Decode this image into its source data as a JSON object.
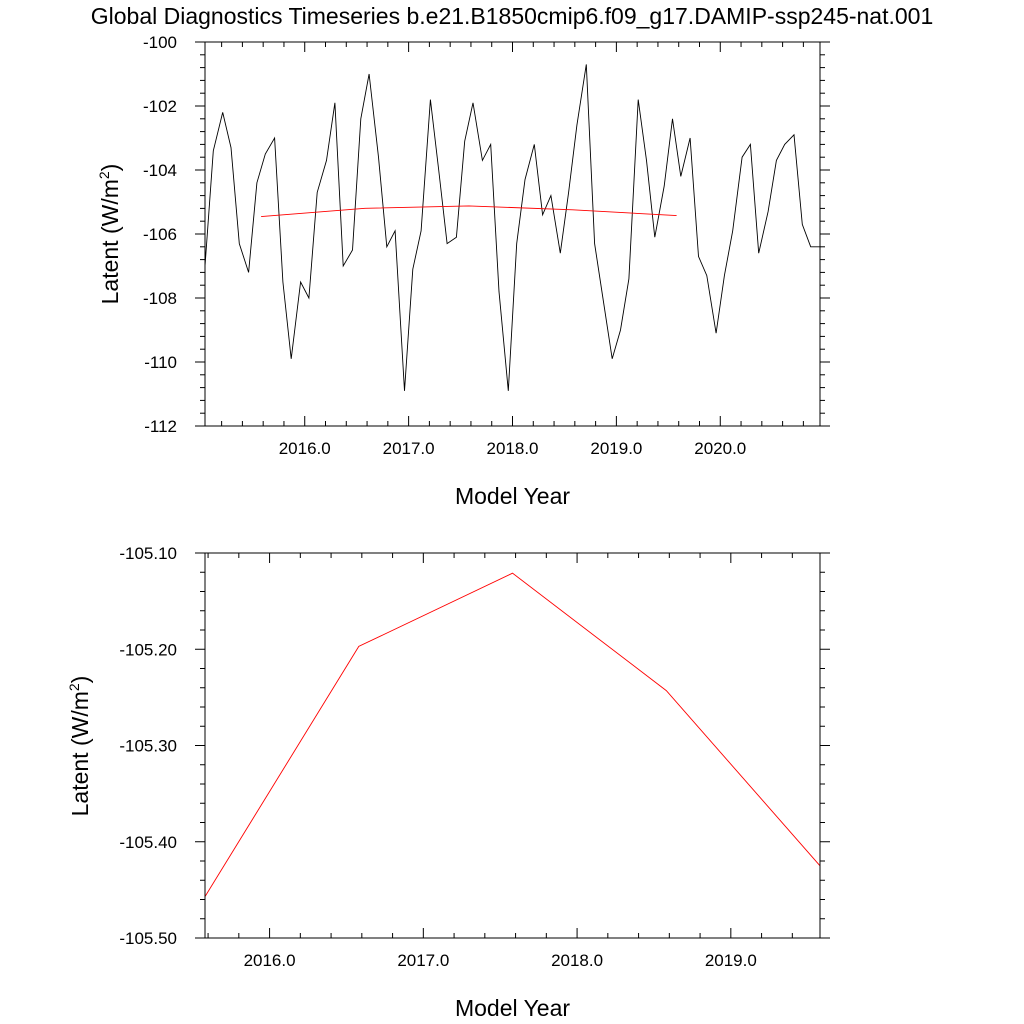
{
  "title": "Global Diagnostics Timeseries b.e21.B1850cmip6.f09_g17.DAMIP-ssp245-nat.001",
  "chart_data": [
    {
      "type": "line",
      "xlabel": "Model Year",
      "ylabel_main": "Latent (W/m",
      "ylabel_sup": "2",
      "ylabel_close": ")",
      "xlim": [
        2015.04,
        2020.96
      ],
      "ylim": [
        -112,
        -100
      ],
      "x_ticks": [
        2016.0,
        2017.0,
        2018.0,
        2019.0,
        2020.0
      ],
      "x_tick_labels": [
        "2016.0",
        "2017.0",
        "2018.0",
        "2019.0",
        "2020.0"
      ],
      "y_ticks": [
        -112,
        -110,
        -108,
        -106,
        -104,
        -102,
        -100
      ],
      "y_tick_labels": [
        "-112",
        "-110",
        "-108",
        "-106",
        "-104",
        "-102",
        "-100"
      ],
      "series": [
        {
          "color": "#000000",
          "x": [
            2015.04,
            2015.12,
            2015.21,
            2015.29,
            2015.37,
            2015.46,
            2015.54,
            2015.62,
            2015.71,
            2015.79,
            2015.87,
            2015.96,
            2016.04,
            2016.12,
            2016.21,
            2016.29,
            2016.37,
            2016.46,
            2016.54,
            2016.62,
            2016.71,
            2016.79,
            2016.87,
            2016.96,
            2017.04,
            2017.12,
            2017.21,
            2017.29,
            2017.37,
            2017.46,
            2017.54,
            2017.62,
            2017.71,
            2017.79,
            2017.87,
            2017.96,
            2018.04,
            2018.12,
            2018.21,
            2018.29,
            2018.37,
            2018.46,
            2018.54,
            2018.62,
            2018.71,
            2018.79,
            2018.87,
            2018.96,
            2019.04,
            2019.12,
            2019.21,
            2019.29,
            2019.37,
            2019.46,
            2019.54,
            2019.62,
            2019.71,
            2019.79,
            2019.87,
            2019.96,
            2020.04,
            2020.12,
            2020.21,
            2020.29,
            2020.37,
            2020.46,
            2020.54,
            2020.62,
            2020.71,
            2020.79,
            2020.87,
            2020.96
          ],
          "y": [
            -107.0,
            -103.4,
            -102.2,
            -103.3,
            -106.3,
            -107.2,
            -104.4,
            -103.5,
            -103.0,
            -107.5,
            -109.9,
            -107.5,
            -108.0,
            -104.7,
            -103.7,
            -101.9,
            -107.0,
            -106.5,
            -102.4,
            -101.0,
            -103.6,
            -106.4,
            -105.9,
            -110.9,
            -107.1,
            -105.9,
            -101.8,
            -104.0,
            -106.3,
            -106.1,
            -103.1,
            -101.9,
            -103.7,
            -103.2,
            -107.8,
            -110.9,
            -106.3,
            -104.3,
            -103.2,
            -105.4,
            -104.8,
            -106.6,
            -104.7,
            -102.6,
            -100.7,
            -106.3,
            -108.0,
            -109.9,
            -109.0,
            -107.4,
            -101.8,
            -103.7,
            -106.1,
            -104.5,
            -102.4,
            -104.2,
            -103.0,
            -106.7,
            -107.3,
            -109.1,
            -107.3,
            -105.9,
            -103.6,
            -103.2,
            -106.6,
            -105.3,
            -103.7,
            -103.2,
            -102.9,
            -105.7,
            -106.4,
            -106.4
          ]
        },
        {
          "color": "#ff0000",
          "x": [
            2015.58,
            2016.58,
            2017.58,
            2018.58,
            2019.58
          ],
          "y": [
            -105.457,
            -105.197,
            -105.121,
            -105.243,
            -105.425
          ]
        }
      ]
    },
    {
      "type": "line",
      "xlabel": "Model Year",
      "ylabel_main": "Latent (W/m",
      "ylabel_sup": "2",
      "ylabel_close": ")",
      "xlim": [
        2015.58,
        2019.58
      ],
      "ylim": [
        -105.5,
        -105.1
      ],
      "x_ticks": [
        2016.0,
        2017.0,
        2018.0,
        2019.0
      ],
      "x_tick_labels": [
        "2016.0",
        "2017.0",
        "2018.0",
        "2019.0"
      ],
      "y_ticks": [
        -105.5,
        -105.4,
        -105.3,
        -105.2,
        -105.1
      ],
      "y_tick_labels": [
        "-105.50",
        "-105.40",
        "-105.30",
        "-105.20",
        "-105.10"
      ],
      "series": [
        {
          "color": "#ff0000",
          "x": [
            2015.58,
            2016.58,
            2017.58,
            2018.58,
            2019.58
          ],
          "y": [
            -105.457,
            -105.197,
            -105.121,
            -105.243,
            -105.425
          ]
        }
      ]
    }
  ]
}
